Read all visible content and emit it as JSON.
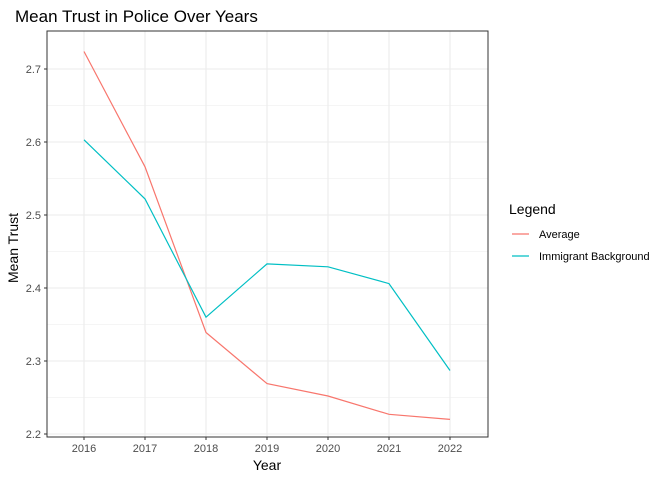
{
  "chart_data": {
    "type": "line",
    "title": "Mean Trust in Police Over Years",
    "xlabel": "Year",
    "ylabel": "Mean Trust",
    "x": [
      "2016",
      "2017",
      "2018",
      "2019",
      "2020",
      "2021",
      "2022"
    ],
    "yticks": [
      "2.2",
      "2.3",
      "2.4",
      "2.5",
      "2.6",
      "2.7"
    ],
    "ylim": [
      2.2,
      2.7
    ],
    "grid": true,
    "legend": {
      "title": "Legend",
      "placement": "right"
    },
    "series": [
      {
        "name": "Average",
        "color": "#F8766D",
        "values": [
          2.724,
          2.566,
          2.339,
          2.269,
          2.252,
          2.227,
          2.22
        ]
      },
      {
        "name": "Immigrant Background",
        "color": "#00BFC4",
        "values": [
          2.603,
          2.522,
          2.36,
          2.433,
          2.429,
          2.406,
          2.287
        ]
      }
    ]
  }
}
